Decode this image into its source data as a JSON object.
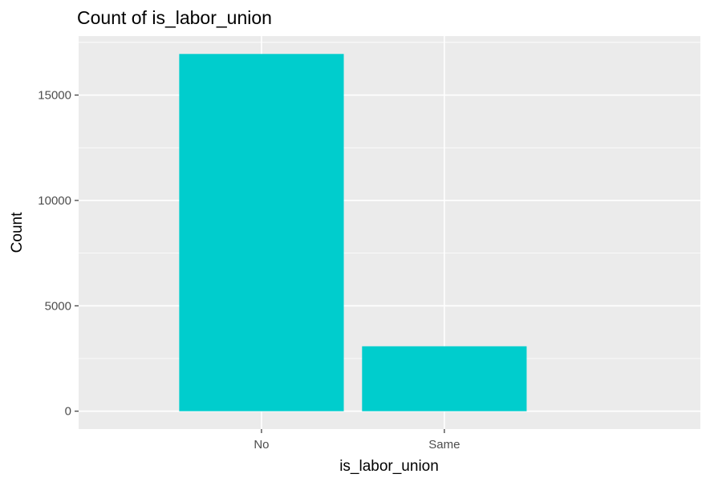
{
  "chart_data": {
    "type": "bar",
    "title": "Count of is_labor_union",
    "xlabel": "is_labor_union",
    "ylabel": "Count",
    "categories": [
      "No",
      "Same"
    ],
    "values": [
      16950,
      3080
    ],
    "yticks": [
      0,
      5000,
      10000,
      15000
    ],
    "ytick_labels": [
      "0",
      "5000",
      "10000",
      "15000"
    ],
    "ylim": [
      -848,
      17798
    ],
    "grid": true,
    "legend": "none",
    "colors": {
      "bar": "#00CDCD",
      "panel": "#EBEBEB",
      "grid": "#FFFFFF",
      "tick": "#333333"
    }
  }
}
